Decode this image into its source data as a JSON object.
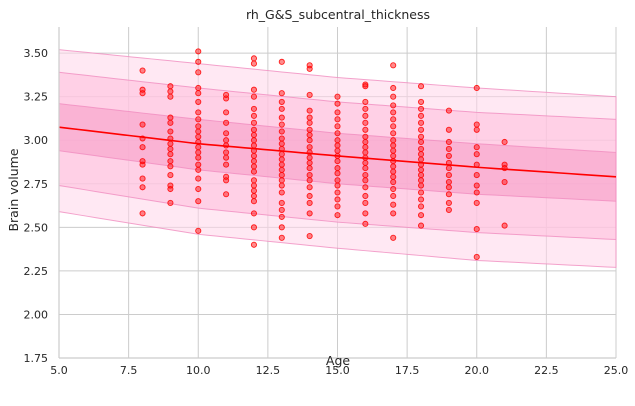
{
  "chart_data": {
    "type": "scatter",
    "title": "rh_G&S_subcentral_thickness",
    "xlabel": "Age",
    "ylabel": "Brain volume",
    "xlim": [
      5.0,
      25.0
    ],
    "ylim": [
      1.75,
      3.65
    ],
    "x_ticks": [
      5.0,
      7.5,
      10.0,
      12.5,
      15.0,
      17.5,
      20.0,
      22.5,
      25.0
    ],
    "x_tick_labels": [
      "5.0",
      "7.5",
      "10.0",
      "12.5",
      "15.0",
      "17.5",
      "20.0",
      "22.5",
      "25.0"
    ],
    "y_ticks": [
      1.75,
      2.0,
      2.25,
      2.5,
      2.75,
      3.0,
      3.25,
      3.5
    ],
    "y_tick_labels": [
      "1.75",
      "2.00",
      "2.25",
      "2.50",
      "2.75",
      "3.00",
      "3.25",
      "3.50"
    ],
    "grid": true,
    "colors": {
      "points": "#ff0000",
      "trend_line": "#ff0000",
      "band_outer": "#ffd6ea",
      "band_middle": "#ffc0dd",
      "band_inner": "#f7a3cb",
      "band_edge": "#f08cbf",
      "grid": "#cccccc",
      "axis": "#cccccc"
    },
    "trend": {
      "x": [
        5,
        10,
        15,
        20,
        25
      ],
      "y": [
        3.075,
        2.98,
        2.91,
        2.845,
        2.79
      ]
    },
    "bands": [
      {
        "level": "outer",
        "lower": [
          2.59,
          2.46,
          2.38,
          2.31,
          2.27
        ],
        "upper": [
          3.52,
          3.44,
          3.36,
          3.3,
          3.25
        ]
      },
      {
        "level": "middle",
        "lower": [
          2.74,
          2.61,
          2.53,
          2.47,
          2.43
        ],
        "upper": [
          3.39,
          3.3,
          3.22,
          3.16,
          3.12
        ]
      },
      {
        "level": "inner",
        "lower": [
          2.94,
          2.83,
          2.75,
          2.69,
          2.65
        ],
        "upper": [
          3.21,
          3.12,
          3.04,
          2.98,
          2.93
        ]
      }
    ],
    "points": [
      {
        "x": 8,
        "y": 3.4
      },
      {
        "x": 8,
        "y": 3.29
      },
      {
        "x": 8,
        "y": 3.27
      },
      {
        "x": 8,
        "y": 3.09
      },
      {
        "x": 8,
        "y": 3.01
      },
      {
        "x": 8,
        "y": 2.96
      },
      {
        "x": 8,
        "y": 2.88
      },
      {
        "x": 8,
        "y": 2.86
      },
      {
        "x": 8,
        "y": 2.78
      },
      {
        "x": 8,
        "y": 2.73
      },
      {
        "x": 8,
        "y": 2.58
      },
      {
        "x": 9,
        "y": 3.31
      },
      {
        "x": 9,
        "y": 3.28
      },
      {
        "x": 9,
        "y": 3.25
      },
      {
        "x": 9,
        "y": 3.13
      },
      {
        "x": 9,
        "y": 3.1
      },
      {
        "x": 9,
        "y": 3.05
      },
      {
        "x": 9,
        "y": 3.01
      },
      {
        "x": 9,
        "y": 2.98
      },
      {
        "x": 9,
        "y": 2.95
      },
      {
        "x": 9,
        "y": 2.92
      },
      {
        "x": 9,
        "y": 2.88
      },
      {
        "x": 9,
        "y": 2.85
      },
      {
        "x": 9,
        "y": 2.8
      },
      {
        "x": 9,
        "y": 2.74
      },
      {
        "x": 9,
        "y": 2.72
      },
      {
        "x": 9,
        "y": 2.64
      },
      {
        "x": 10,
        "y": 3.51
      },
      {
        "x": 10,
        "y": 3.45
      },
      {
        "x": 10,
        "y": 3.39
      },
      {
        "x": 10,
        "y": 3.3
      },
      {
        "x": 10,
        "y": 3.27
      },
      {
        "x": 10,
        "y": 3.22
      },
      {
        "x": 10,
        "y": 3.16
      },
      {
        "x": 10,
        "y": 3.12
      },
      {
        "x": 10,
        "y": 3.08
      },
      {
        "x": 10,
        "y": 3.05
      },
      {
        "x": 10,
        "y": 3.02
      },
      {
        "x": 10,
        "y": 2.99
      },
      {
        "x": 10,
        "y": 2.96
      },
      {
        "x": 10,
        "y": 2.93
      },
      {
        "x": 10,
        "y": 2.9
      },
      {
        "x": 10,
        "y": 2.86
      },
      {
        "x": 10,
        "y": 2.83
      },
      {
        "x": 10,
        "y": 2.78
      },
      {
        "x": 10,
        "y": 2.72
      },
      {
        "x": 10,
        "y": 2.65
      },
      {
        "x": 10,
        "y": 2.48
      },
      {
        "x": 11,
        "y": 3.26
      },
      {
        "x": 11,
        "y": 3.24
      },
      {
        "x": 11,
        "y": 3.16
      },
      {
        "x": 11,
        "y": 3.1
      },
      {
        "x": 11,
        "y": 3.04
      },
      {
        "x": 11,
        "y": 3.0
      },
      {
        "x": 11,
        "y": 2.97
      },
      {
        "x": 11,
        "y": 2.93
      },
      {
        "x": 11,
        "y": 2.9
      },
      {
        "x": 11,
        "y": 2.86
      },
      {
        "x": 11,
        "y": 2.79
      },
      {
        "x": 11,
        "y": 2.77
      },
      {
        "x": 11,
        "y": 2.69
      },
      {
        "x": 12,
        "y": 3.47
      },
      {
        "x": 12,
        "y": 3.44
      },
      {
        "x": 12,
        "y": 3.29
      },
      {
        "x": 12,
        "y": 3.25
      },
      {
        "x": 12,
        "y": 3.18
      },
      {
        "x": 12,
        "y": 3.14
      },
      {
        "x": 12,
        "y": 3.1
      },
      {
        "x": 12,
        "y": 3.06
      },
      {
        "x": 12,
        "y": 3.03
      },
      {
        "x": 12,
        "y": 3.0
      },
      {
        "x": 12,
        "y": 2.97
      },
      {
        "x": 12,
        "y": 2.94
      },
      {
        "x": 12,
        "y": 2.91
      },
      {
        "x": 12,
        "y": 2.88
      },
      {
        "x": 12,
        "y": 2.85
      },
      {
        "x": 12,
        "y": 2.82
      },
      {
        "x": 12,
        "y": 2.77
      },
      {
        "x": 12,
        "y": 2.74
      },
      {
        "x": 12,
        "y": 2.71
      },
      {
        "x": 12,
        "y": 2.68
      },
      {
        "x": 12,
        "y": 2.65
      },
      {
        "x": 12,
        "y": 2.58
      },
      {
        "x": 12,
        "y": 2.5
      },
      {
        "x": 12,
        "y": 2.4
      },
      {
        "x": 13,
        "y": 3.45
      },
      {
        "x": 13,
        "y": 3.27
      },
      {
        "x": 13,
        "y": 3.22
      },
      {
        "x": 13,
        "y": 3.18
      },
      {
        "x": 13,
        "y": 3.13
      },
      {
        "x": 13,
        "y": 3.09
      },
      {
        "x": 13,
        "y": 3.05
      },
      {
        "x": 13,
        "y": 3.01
      },
      {
        "x": 13,
        "y": 2.98
      },
      {
        "x": 13,
        "y": 2.95
      },
      {
        "x": 13,
        "y": 2.92
      },
      {
        "x": 13,
        "y": 2.89
      },
      {
        "x": 13,
        "y": 2.86
      },
      {
        "x": 13,
        "y": 2.83
      },
      {
        "x": 13,
        "y": 2.8
      },
      {
        "x": 13,
        "y": 2.77
      },
      {
        "x": 13,
        "y": 2.74
      },
      {
        "x": 13,
        "y": 2.7
      },
      {
        "x": 13,
        "y": 2.64
      },
      {
        "x": 13,
        "y": 2.6
      },
      {
        "x": 13,
        "y": 2.56
      },
      {
        "x": 13,
        "y": 2.5
      },
      {
        "x": 13,
        "y": 2.44
      },
      {
        "x": 14,
        "y": 3.43
      },
      {
        "x": 14,
        "y": 3.41
      },
      {
        "x": 14,
        "y": 3.26
      },
      {
        "x": 14,
        "y": 3.17
      },
      {
        "x": 14,
        "y": 3.13
      },
      {
        "x": 14,
        "y": 3.1
      },
      {
        "x": 14,
        "y": 3.06
      },
      {
        "x": 14,
        "y": 3.03
      },
      {
        "x": 14,
        "y": 3.0
      },
      {
        "x": 14,
        "y": 2.96
      },
      {
        "x": 14,
        "y": 2.93
      },
      {
        "x": 14,
        "y": 2.9
      },
      {
        "x": 14,
        "y": 2.87
      },
      {
        "x": 14,
        "y": 2.84
      },
      {
        "x": 14,
        "y": 2.8
      },
      {
        "x": 14,
        "y": 2.77
      },
      {
        "x": 14,
        "y": 2.73
      },
      {
        "x": 14,
        "y": 2.68
      },
      {
        "x": 14,
        "y": 2.64
      },
      {
        "x": 14,
        "y": 2.58
      },
      {
        "x": 14,
        "y": 2.45
      },
      {
        "x": 15,
        "y": 3.25
      },
      {
        "x": 15,
        "y": 3.21
      },
      {
        "x": 15,
        "y": 3.16
      },
      {
        "x": 15,
        "y": 3.12
      },
      {
        "x": 15,
        "y": 3.08
      },
      {
        "x": 15,
        "y": 3.04
      },
      {
        "x": 15,
        "y": 3.0
      },
      {
        "x": 15,
        "y": 2.97
      },
      {
        "x": 15,
        "y": 2.94
      },
      {
        "x": 15,
        "y": 2.91
      },
      {
        "x": 15,
        "y": 2.88
      },
      {
        "x": 15,
        "y": 2.84
      },
      {
        "x": 15,
        "y": 2.81
      },
      {
        "x": 15,
        "y": 2.77
      },
      {
        "x": 15,
        "y": 2.74
      },
      {
        "x": 15,
        "y": 2.7
      },
      {
        "x": 15,
        "y": 2.66
      },
      {
        "x": 15,
        "y": 2.62
      },
      {
        "x": 15,
        "y": 2.57
      },
      {
        "x": 16,
        "y": 3.32
      },
      {
        "x": 16,
        "y": 3.31
      },
      {
        "x": 16,
        "y": 3.22
      },
      {
        "x": 16,
        "y": 3.18
      },
      {
        "x": 16,
        "y": 3.14
      },
      {
        "x": 16,
        "y": 3.1
      },
      {
        "x": 16,
        "y": 3.06
      },
      {
        "x": 16,
        "y": 3.02
      },
      {
        "x": 16,
        "y": 2.99
      },
      {
        "x": 16,
        "y": 2.96
      },
      {
        "x": 16,
        "y": 2.93
      },
      {
        "x": 16,
        "y": 2.9
      },
      {
        "x": 16,
        "y": 2.87
      },
      {
        "x": 16,
        "y": 2.84
      },
      {
        "x": 16,
        "y": 2.8
      },
      {
        "x": 16,
        "y": 2.77
      },
      {
        "x": 16,
        "y": 2.73
      },
      {
        "x": 16,
        "y": 2.68
      },
      {
        "x": 16,
        "y": 2.64
      },
      {
        "x": 16,
        "y": 2.58
      },
      {
        "x": 16,
        "y": 2.52
      },
      {
        "x": 17,
        "y": 3.43
      },
      {
        "x": 17,
        "y": 3.3
      },
      {
        "x": 17,
        "y": 3.25
      },
      {
        "x": 17,
        "y": 3.2
      },
      {
        "x": 17,
        "y": 3.16
      },
      {
        "x": 17,
        "y": 3.12
      },
      {
        "x": 17,
        "y": 3.08
      },
      {
        "x": 17,
        "y": 3.04
      },
      {
        "x": 17,
        "y": 3.0
      },
      {
        "x": 17,
        "y": 2.97
      },
      {
        "x": 17,
        "y": 2.94
      },
      {
        "x": 17,
        "y": 2.91
      },
      {
        "x": 17,
        "y": 2.88
      },
      {
        "x": 17,
        "y": 2.85
      },
      {
        "x": 17,
        "y": 2.82
      },
      {
        "x": 17,
        "y": 2.79
      },
      {
        "x": 17,
        "y": 2.76
      },
      {
        "x": 17,
        "y": 2.72
      },
      {
        "x": 17,
        "y": 2.68
      },
      {
        "x": 17,
        "y": 2.63
      },
      {
        "x": 17,
        "y": 2.58
      },
      {
        "x": 17,
        "y": 2.44
      },
      {
        "x": 18,
        "y": 3.31
      },
      {
        "x": 18,
        "y": 3.22
      },
      {
        "x": 18,
        "y": 3.18
      },
      {
        "x": 18,
        "y": 3.14
      },
      {
        "x": 18,
        "y": 3.1
      },
      {
        "x": 18,
        "y": 3.06
      },
      {
        "x": 18,
        "y": 3.02
      },
      {
        "x": 18,
        "y": 2.99
      },
      {
        "x": 18,
        "y": 2.95
      },
      {
        "x": 18,
        "y": 2.92
      },
      {
        "x": 18,
        "y": 2.89
      },
      {
        "x": 18,
        "y": 2.86
      },
      {
        "x": 18,
        "y": 2.83
      },
      {
        "x": 18,
        "y": 2.8
      },
      {
        "x": 18,
        "y": 2.77
      },
      {
        "x": 18,
        "y": 2.74
      },
      {
        "x": 18,
        "y": 2.7
      },
      {
        "x": 18,
        "y": 2.66
      },
      {
        "x": 18,
        "y": 2.62
      },
      {
        "x": 18,
        "y": 2.57
      },
      {
        "x": 18,
        "y": 2.51
      },
      {
        "x": 19,
        "y": 3.17
      },
      {
        "x": 19,
        "y": 3.06
      },
      {
        "x": 19,
        "y": 2.99
      },
      {
        "x": 19,
        "y": 2.95
      },
      {
        "x": 19,
        "y": 2.91
      },
      {
        "x": 19,
        "y": 2.87
      },
      {
        "x": 19,
        "y": 2.84
      },
      {
        "x": 19,
        "y": 2.8
      },
      {
        "x": 19,
        "y": 2.76
      },
      {
        "x": 19,
        "y": 2.73
      },
      {
        "x": 19,
        "y": 2.69
      },
      {
        "x": 19,
        "y": 2.64
      },
      {
        "x": 19,
        "y": 2.6
      },
      {
        "x": 20,
        "y": 3.3
      },
      {
        "x": 20,
        "y": 3.09
      },
      {
        "x": 20,
        "y": 3.06
      },
      {
        "x": 20,
        "y": 2.96
      },
      {
        "x": 20,
        "y": 2.92
      },
      {
        "x": 20,
        "y": 2.86
      },
      {
        "x": 20,
        "y": 2.8
      },
      {
        "x": 20,
        "y": 2.74
      },
      {
        "x": 20,
        "y": 2.7
      },
      {
        "x": 20,
        "y": 2.64
      },
      {
        "x": 20,
        "y": 2.49
      },
      {
        "x": 20,
        "y": 2.33
      },
      {
        "x": 21,
        "y": 2.99
      },
      {
        "x": 21,
        "y": 2.86
      },
      {
        "x": 21,
        "y": 2.84
      },
      {
        "x": 21,
        "y": 2.76
      },
      {
        "x": 21,
        "y": 2.51
      }
    ]
  }
}
